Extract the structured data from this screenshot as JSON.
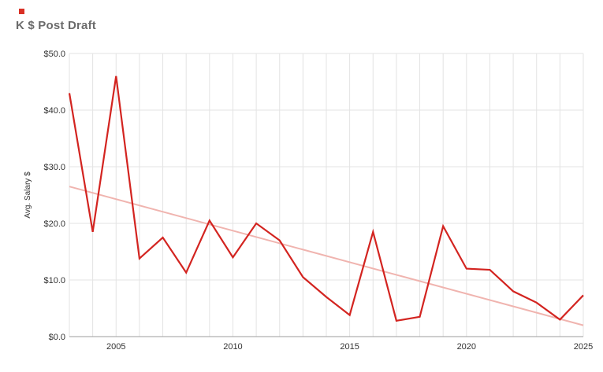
{
  "header": {
    "title": "K $ Post Draft",
    "title_color": "#6b6b6b",
    "marker_color": "#d93025"
  },
  "chart_data": {
    "type": "line",
    "title": "K $ Post Draft",
    "xlabel": "",
    "ylabel": "Avg. Salary $",
    "x": [
      2003,
      2004,
      2005,
      2006,
      2007,
      2008,
      2009,
      2010,
      2011,
      2012,
      2013,
      2014,
      2015,
      2016,
      2017,
      2018,
      2019,
      2020,
      2021,
      2022,
      2023,
      2024,
      2025
    ],
    "series": [
      {
        "name": "Avg. Salary $",
        "color": "#d32420",
        "values": [
          43,
          18.5,
          46,
          13.8,
          17.5,
          11.3,
          20.5,
          14,
          20,
          17,
          10.5,
          7,
          3.8,
          18.5,
          2.8,
          3.5,
          19.5,
          12,
          11.8,
          8,
          6,
          3,
          7.3
        ]
      }
    ],
    "trendline": {
      "color": "#f0b4af",
      "start": {
        "x": 2003,
        "y": 26.5
      },
      "end": {
        "x": 2025,
        "y": 2.0
      }
    },
    "xlim": [
      2003,
      2025
    ],
    "ylim": [
      0,
      50
    ],
    "ytick_values": [
      0,
      10,
      20,
      30,
      40,
      50
    ],
    "ytick_labels": [
      "$0.0",
      "$10.0",
      "$20.0",
      "$30.0",
      "$40.0",
      "$50.0"
    ],
    "xtick_values": [
      2005,
      2010,
      2015,
      2020,
      2025
    ],
    "xtick_labels": [
      "2005",
      "2010",
      "2015",
      "2020",
      "2025"
    ],
    "grid": true,
    "legend_position": "none"
  }
}
